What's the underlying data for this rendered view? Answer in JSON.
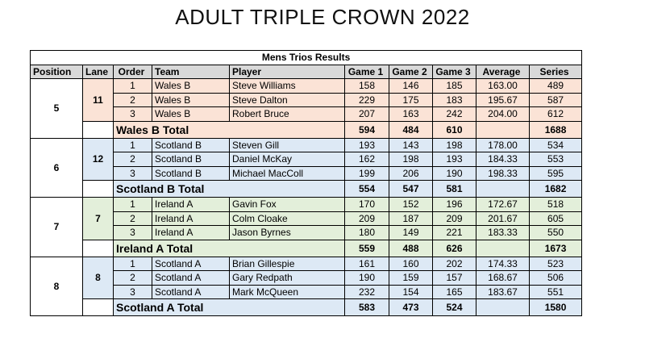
{
  "page_title": "ADULT TRIPLE CROWN 2022",
  "table_title": "Mens Trios Results",
  "headers": [
    "Position",
    "Lane",
    "Order",
    "Team",
    "Player",
    "Game 1",
    "Game 2",
    "Game 3",
    "Average",
    "Series"
  ],
  "groups": [
    {
      "position": "5",
      "lane": "11",
      "rows": [
        {
          "order": "1",
          "team": "Wales B",
          "player": "Steve Williams",
          "g1": "158",
          "g2": "146",
          "g3": "185",
          "avg": "163.00",
          "series": "489"
        },
        {
          "order": "2",
          "team": "Wales B",
          "player": "Steve Dalton",
          "g1": "229",
          "g2": "175",
          "g3": "183",
          "avg": "195.67",
          "series": "587"
        },
        {
          "order": "3",
          "team": "Wales B",
          "player": "Robert Bruce",
          "g1": "207",
          "g2": "163",
          "g3": "242",
          "avg": "204.00",
          "series": "612"
        }
      ],
      "total": {
        "label": "Wales B Total",
        "g1": "594",
        "g2": "484",
        "g3": "610",
        "series": "1688"
      }
    },
    {
      "position": "6",
      "lane": "12",
      "rows": [
        {
          "order": "1",
          "team": "Scotland B",
          "player": "Steven Gill",
          "g1": "193",
          "g2": "143",
          "g3": "198",
          "avg": "178.00",
          "series": "534"
        },
        {
          "order": "2",
          "team": "Scotland B",
          "player": "Daniel McKay",
          "g1": "162",
          "g2": "198",
          "g3": "193",
          "avg": "184.33",
          "series": "553"
        },
        {
          "order": "3",
          "team": "Scotland B",
          "player": "Michael MacColl",
          "g1": "199",
          "g2": "206",
          "g3": "190",
          "avg": "198.33",
          "series": "595"
        }
      ],
      "total": {
        "label": "Scotland B Total",
        "g1": "554",
        "g2": "547",
        "g3": "581",
        "series": "1682"
      }
    },
    {
      "position": "7",
      "lane": "7",
      "rows": [
        {
          "order": "1",
          "team": "Ireland A",
          "player": "Gavin Fox",
          "g1": "170",
          "g2": "152",
          "g3": "196",
          "avg": "172.67",
          "series": "518"
        },
        {
          "order": "2",
          "team": "Ireland A",
          "player": "Colm Cloake",
          "g1": "209",
          "g2": "187",
          "g3": "209",
          "avg": "201.67",
          "series": "605"
        },
        {
          "order": "3",
          "team": "Ireland A",
          "player": "Jason Byrnes",
          "g1": "180",
          "g2": "149",
          "g3": "221",
          "avg": "183.33",
          "series": "550"
        }
      ],
      "total": {
        "label": "Ireland A Total",
        "g1": "559",
        "g2": "488",
        "g3": "626",
        "series": "1673"
      }
    },
    {
      "position": "8",
      "lane": "8",
      "rows": [
        {
          "order": "1",
          "team": "Scotland A",
          "player": "Brian Gillespie",
          "g1": "161",
          "g2": "160",
          "g3": "202",
          "avg": "174.33",
          "series": "523"
        },
        {
          "order": "2",
          "team": "Scotland A",
          "player": "Gary Redpath",
          "g1": "190",
          "g2": "159",
          "g3": "157",
          "avg": "168.67",
          "series": "506"
        },
        {
          "order": "3",
          "team": "Scotland A",
          "player": "Mark McQueen",
          "g1": "232",
          "g2": "154",
          "g3": "165",
          "avg": "183.67",
          "series": "551"
        }
      ],
      "total": {
        "label": "Scotland A Total",
        "g1": "583",
        "g2": "473",
        "g3": "524",
        "series": "1580"
      }
    }
  ]
}
